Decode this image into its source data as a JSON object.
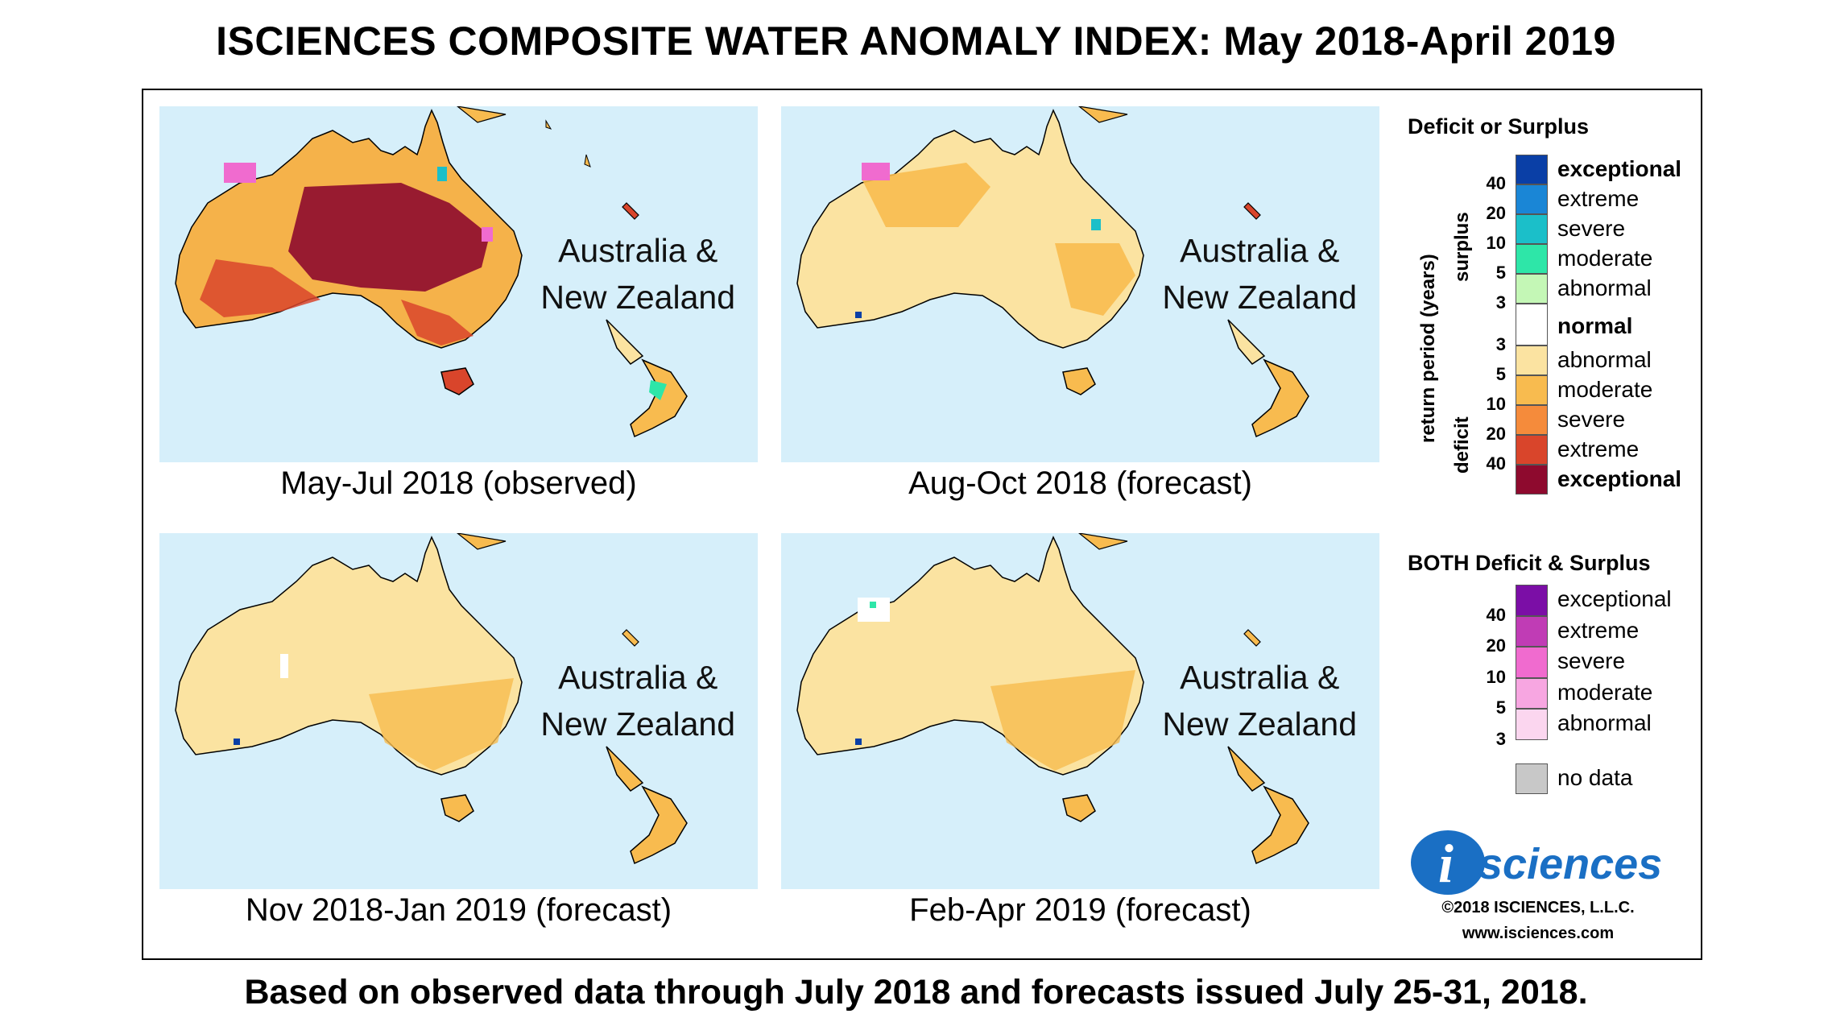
{
  "title": "ISCIENCES COMPOSITE WATER ANOMALY INDEX: May 2018-April 2019",
  "footer": "Based on observed data through July 2018 and forecasts issued July 25-31, 2018.",
  "region_line1": "Australia &",
  "region_line2": "New Zealand",
  "panels": [
    {
      "caption": "May-Jul 2018 (observed)",
      "fill": "#f5b24a"
    },
    {
      "caption": "Aug-Oct 2018 (forecast)",
      "fill": "#fbe3a1"
    },
    {
      "caption": "Nov 2018-Jan 2019 (forecast)",
      "fill": "#fbe3a1"
    },
    {
      "caption": "Feb-Apr 2019 (forecast)",
      "fill": "#fbe3a1"
    }
  ],
  "legend": {
    "title1": "Deficit or Surplus",
    "axis_label": "return period (years)",
    "surplus_label": "surplus",
    "deficit_label": "deficit",
    "surplus": [
      {
        "label": "exceptional",
        "color": "#0a3fa6",
        "bold": true
      },
      {
        "label": "extreme",
        "color": "#1a86d6",
        "bold": false
      },
      {
        "label": "severe",
        "color": "#1bbfc9",
        "bold": false
      },
      {
        "label": "moderate",
        "color": "#2ee6a8",
        "bold": false
      },
      {
        "label": "abnormal",
        "color": "#c4f7b6",
        "bold": false
      }
    ],
    "normal": {
      "label": "normal",
      "color": "#ffffff"
    },
    "deficit": [
      {
        "label": "abnormal",
        "color": "#fbe3a1",
        "bold": false
      },
      {
        "label": "moderate",
        "color": "#f8bb4f",
        "bold": false
      },
      {
        "label": "severe",
        "color": "#f58b3b",
        "bold": false
      },
      {
        "label": "extreme",
        "color": "#d9452b",
        "bold": false
      },
      {
        "label": "exceptional",
        "color": "#8e0a2e",
        "bold": true
      }
    ],
    "surplus_ticks": [
      "40",
      "20",
      "10",
      "5",
      "3"
    ],
    "deficit_ticks": [
      "3",
      "5",
      "10",
      "20",
      "40"
    ],
    "title2": "BOTH Deficit & Surplus",
    "both": [
      {
        "label": "exceptional",
        "color": "#7b0ea6"
      },
      {
        "label": "extreme",
        "color": "#c03cb5"
      },
      {
        "label": "severe",
        "color": "#f06bcf"
      },
      {
        "label": "moderate",
        "color": "#f7a6e1"
      },
      {
        "label": "abnormal",
        "color": "#fbd6ef"
      }
    ],
    "both_ticks": [
      "40",
      "20",
      "10",
      "5",
      "3"
    ],
    "nodata": {
      "label": "no data",
      "color": "#c8c8c8"
    }
  },
  "logo_letter": "i",
  "logo_text": "sciences",
  "copyright": "©2018 ISCIENCES, L.L.C.",
  "website": "www.isciences.com"
}
